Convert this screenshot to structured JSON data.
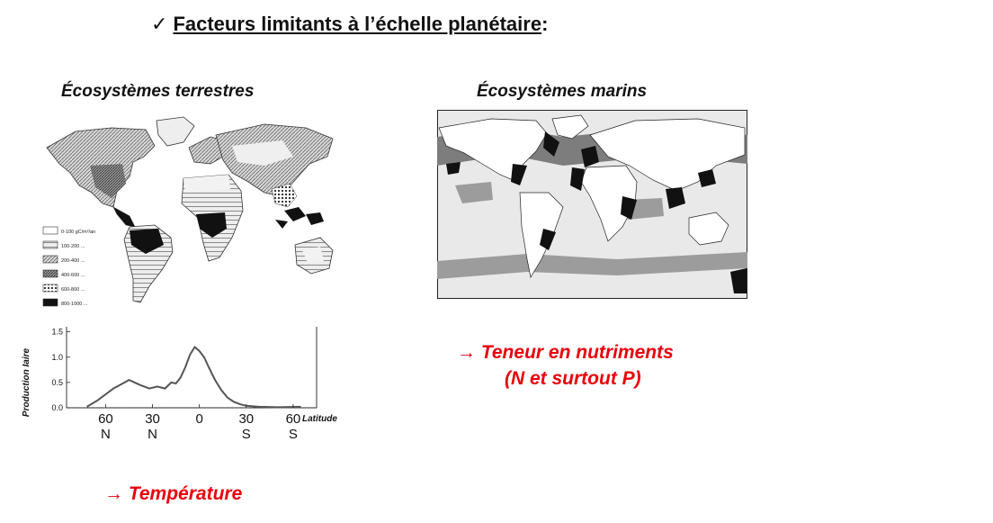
{
  "heading": {
    "check": "✓",
    "text": "Facteurs limitants à l’échelle planétaire",
    "colon": ":"
  },
  "terrestrial": {
    "title": "Écosystèmes terrestres",
    "legend": [
      "0-100 gC/m²/an",
      "100-200 ...",
      "200-400 ...",
      "400-600 ...",
      "600-800 ...",
      "800-1000 ..."
    ],
    "factor": "→ Température"
  },
  "marine": {
    "title": "Écosystèmes marins",
    "factor_line1": "→ Teneur en nutriments",
    "factor_line2": "(N et surtout P)"
  },
  "colors": {
    "accent": "#e8000b",
    "text": "#111111"
  },
  "chart_data": {
    "type": "line",
    "ylabel": "Production Iaire",
    "xlabel": "Latitude",
    "y_ticks": [
      "0.0",
      "0.5",
      "1.0",
      "1.5"
    ],
    "ylim": [
      0,
      1.6
    ],
    "x_tick_labels": [
      {
        "top": "60",
        "bottom": "N"
      },
      {
        "top": "30",
        "bottom": "N"
      },
      {
        "top": "0",
        "bottom": ""
      },
      {
        "top": "30",
        "bottom": "S"
      },
      {
        "top": "60",
        "bottom": "S"
      }
    ],
    "x_ticks": [
      60,
      30,
      0,
      -30,
      -60
    ],
    "xlim": [
      85,
      -75
    ],
    "series": [
      {
        "x": [
          72,
          65,
          55,
          45,
          38,
          32,
          27,
          22,
          18,
          15,
          12,
          9,
          6,
          3,
          0,
          -3,
          -6,
          -10,
          -14,
          -18,
          -22,
          -26,
          -30,
          -38,
          -50,
          -65
        ],
        "y": [
          0.02,
          0.15,
          0.38,
          0.55,
          0.45,
          0.38,
          0.42,
          0.38,
          0.5,
          0.48,
          0.6,
          0.8,
          1.05,
          1.2,
          1.12,
          1.0,
          0.8,
          0.55,
          0.35,
          0.2,
          0.12,
          0.07,
          0.04,
          0.02,
          0.01,
          0.02
        ]
      }
    ]
  }
}
